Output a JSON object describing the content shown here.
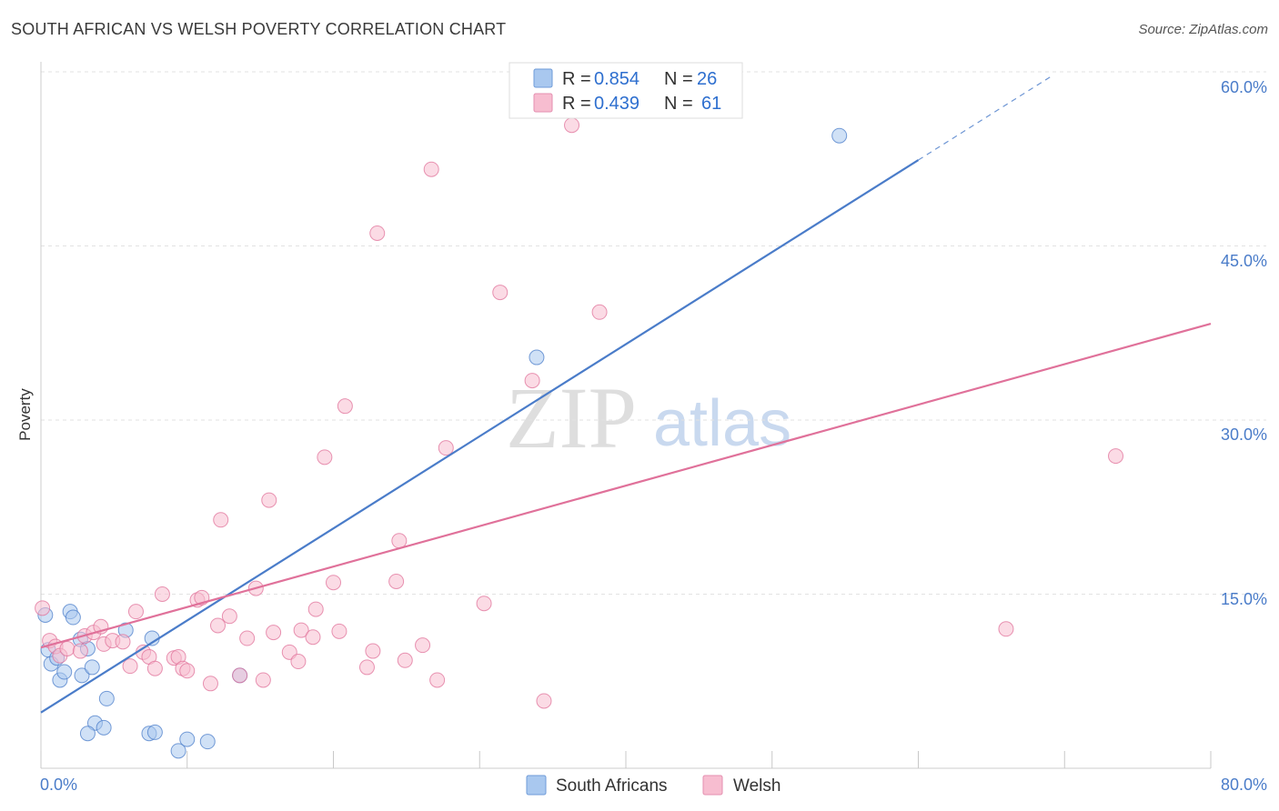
{
  "header": {
    "title": "SOUTH AFRICAN VS WELSH POVERTY CORRELATION CHART",
    "source": "Source: ZipAtlas.com"
  },
  "watermark": {
    "part1": "ZIP",
    "part2": "atlas"
  },
  "legend": {
    "r_label": "R =",
    "n_label": "N =",
    "items": [
      {
        "r": "0.854",
        "n": "26"
      },
      {
        "r": "0.439",
        "n": "61"
      }
    ]
  },
  "chart_data": {
    "type": "scatter",
    "title": "SOUTH AFRICAN VS WELSH POVERTY CORRELATION CHART",
    "xlabel": "",
    "ylabel": "Poverty",
    "xlim": [
      0,
      80
    ],
    "ylim": [
      0,
      60
    ],
    "x_tick_labels": [
      {
        "value": 0,
        "label": "0.0%"
      },
      {
        "value": 80,
        "label": "80.0%"
      }
    ],
    "y_tick_labels": [
      {
        "value": 15,
        "label": "15.0%"
      },
      {
        "value": 30,
        "label": "30.0%"
      },
      {
        "value": 45,
        "label": "45.0%"
      },
      {
        "value": 60,
        "label": "60.0%"
      }
    ],
    "grid": true,
    "legend_position": "top-center",
    "series": [
      {
        "name": "South Africans",
        "color": "#4a7cc9",
        "fill": "#a9c8ef",
        "r": 0.854,
        "n": 26,
        "trend": {
          "x0": 0,
          "y0": 4.8,
          "x1": 60,
          "y1": 52.4,
          "dash_to_x": 69
        },
        "points": [
          [
            0.3,
            13.2
          ],
          [
            0.5,
            10.2
          ],
          [
            0.7,
            9.0
          ],
          [
            1.1,
            9.5
          ],
          [
            1.3,
            7.6
          ],
          [
            1.6,
            8.3
          ],
          [
            2.0,
            13.5
          ],
          [
            2.2,
            13.0
          ],
          [
            2.7,
            11.1
          ],
          [
            2.8,
            8.0
          ],
          [
            3.2,
            10.3
          ],
          [
            3.5,
            8.7
          ],
          [
            3.7,
            3.9
          ],
          [
            4.3,
            3.5
          ],
          [
            4.5,
            6.0
          ],
          [
            5.8,
            11.9
          ],
          [
            7.4,
            3.0
          ],
          [
            7.6,
            11.2
          ],
          [
            7.8,
            3.1
          ],
          [
            9.4,
            1.5
          ],
          [
            10.0,
            2.5
          ],
          [
            11.4,
            2.3
          ],
          [
            13.6,
            8.0
          ],
          [
            33.9,
            35.4
          ],
          [
            54.6,
            54.5
          ],
          [
            3.2,
            3.0
          ]
        ]
      },
      {
        "name": "Welsh",
        "color": "#e0719a",
        "fill": "#f7bdd0",
        "r": 0.439,
        "n": 61,
        "trend": {
          "x0": 0,
          "y0": 10.4,
          "x1": 80,
          "y1": 38.3
        },
        "points": [
          [
            0.1,
            13.8
          ],
          [
            0.6,
            11.0
          ],
          [
            1.0,
            10.5
          ],
          [
            1.3,
            9.7
          ],
          [
            1.8,
            10.3
          ],
          [
            2.7,
            10.1
          ],
          [
            3.0,
            11.4
          ],
          [
            3.6,
            11.7
          ],
          [
            4.1,
            12.2
          ],
          [
            4.3,
            10.7
          ],
          [
            4.9,
            11.0
          ],
          [
            5.6,
            10.9
          ],
          [
            6.1,
            8.8
          ],
          [
            6.5,
            13.5
          ],
          [
            7.0,
            10.0
          ],
          [
            7.4,
            9.6
          ],
          [
            7.8,
            8.6
          ],
          [
            8.3,
            15.0
          ],
          [
            9.1,
            9.5
          ],
          [
            9.4,
            9.6
          ],
          [
            9.7,
            8.6
          ],
          [
            10.0,
            8.4
          ],
          [
            10.7,
            14.5
          ],
          [
            11.0,
            14.7
          ],
          [
            11.6,
            7.3
          ],
          [
            12.1,
            12.3
          ],
          [
            12.9,
            13.1
          ],
          [
            12.3,
            21.4
          ],
          [
            13.6,
            8.0
          ],
          [
            14.1,
            11.2
          ],
          [
            14.7,
            15.5
          ],
          [
            15.2,
            7.6
          ],
          [
            15.6,
            23.1
          ],
          [
            15.9,
            11.7
          ],
          [
            17.0,
            10.0
          ],
          [
            17.6,
            9.2
          ],
          [
            17.8,
            11.9
          ],
          [
            18.6,
            11.3
          ],
          [
            18.8,
            13.7
          ],
          [
            19.4,
            26.8
          ],
          [
            20.0,
            16.0
          ],
          [
            20.4,
            11.8
          ],
          [
            20.8,
            31.2
          ],
          [
            22.3,
            8.7
          ],
          [
            22.7,
            10.1
          ],
          [
            23.0,
            46.1
          ],
          [
            24.3,
            16.1
          ],
          [
            24.5,
            19.6
          ],
          [
            24.9,
            9.3
          ],
          [
            26.1,
            10.6
          ],
          [
            26.7,
            51.6
          ],
          [
            27.1,
            7.6
          ],
          [
            27.7,
            27.6
          ],
          [
            30.3,
            14.2
          ],
          [
            31.4,
            41.0
          ],
          [
            33.6,
            33.4
          ],
          [
            34.4,
            5.8
          ],
          [
            36.3,
            55.4
          ],
          [
            38.2,
            39.3
          ],
          [
            66.0,
            12.0
          ],
          [
            73.5,
            26.9
          ]
        ]
      }
    ]
  }
}
